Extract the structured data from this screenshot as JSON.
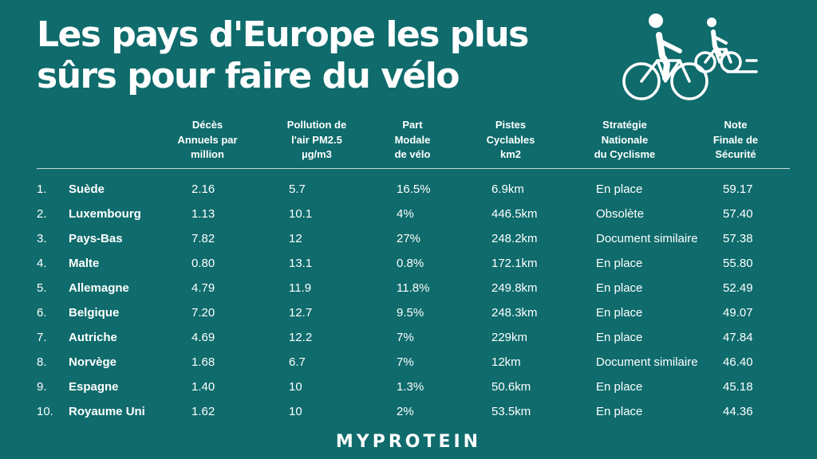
{
  "title": "Les pays d'Europe les plus sûrs pour faire du vélo",
  "icon": "cyclists-icon",
  "columns": {
    "deaths": "Décès\nAnnuels par\nmillion",
    "pm25": "Pollution de\nl'air PM2.5\nµg/m3",
    "modal": "Part\nModale\nde vélo",
    "lanes": "Pistes\nCyclables\nkm2",
    "strategy": "Stratégie\nNationale\ndu Cyclisme",
    "score": "Note\nFinale de\nSécurité"
  },
  "rows": [
    {
      "rank": "1.",
      "country": "Suède",
      "deaths": "2.16",
      "pm25": "5.7",
      "modal": "16.5%",
      "lanes": "6.9km",
      "strategy": "En place",
      "score": "59.17"
    },
    {
      "rank": "2.",
      "country": "Luxembourg",
      "deaths": "1.13",
      "pm25": "10.1",
      "modal": "4%",
      "lanes": "446.5km",
      "strategy": "Obsolète",
      "score": "57.40"
    },
    {
      "rank": "3.",
      "country": "Pays-Bas",
      "deaths": "7.82",
      "pm25": "12",
      "modal": "27%",
      "lanes": "248.2km",
      "strategy": "Document similaire",
      "score": "57.38"
    },
    {
      "rank": "4.",
      "country": "Malte",
      "deaths": "0.80",
      "pm25": "13.1",
      "modal": "0.8%",
      "lanes": "172.1km",
      "strategy": "En place",
      "score": "55.80"
    },
    {
      "rank": "5.",
      "country": "Allemagne",
      "deaths": "4.79",
      "pm25": "11.9",
      "modal": "11.8%",
      "lanes": "249.8km",
      "strategy": "En place",
      "score": "52.49"
    },
    {
      "rank": "6.",
      "country": "Belgique",
      "deaths": "7.20",
      "pm25": "12.7",
      "modal": "9.5%",
      "lanes": "248.3km",
      "strategy": "En place",
      "score": "49.07"
    },
    {
      "rank": "7.",
      "country": "Autriche",
      "deaths": "4.69",
      "pm25": "12.2",
      "modal": "7%",
      "lanes": "229km",
      "strategy": "En place",
      "score": "47.84"
    },
    {
      "rank": "8.",
      "country": "Norvège",
      "deaths": "1.68",
      "pm25": "6.7",
      "modal": "7%",
      "lanes": "12km",
      "strategy": "Document similaire",
      "score": "46.40"
    },
    {
      "rank": "9.",
      "country": "Espagne",
      "deaths": "1.40",
      "pm25": "10",
      "modal": "1.3%",
      "lanes": "50.6km",
      "strategy": "En place",
      "score": "45.18"
    },
    {
      "rank": "10.",
      "country": "Royaume Uni",
      "deaths": "1.62",
      "pm25": "10",
      "modal": "2%",
      "lanes": "53.5km",
      "strategy": "En place",
      "score": "44.36"
    }
  ],
  "brand": "MYPROTEIN"
}
